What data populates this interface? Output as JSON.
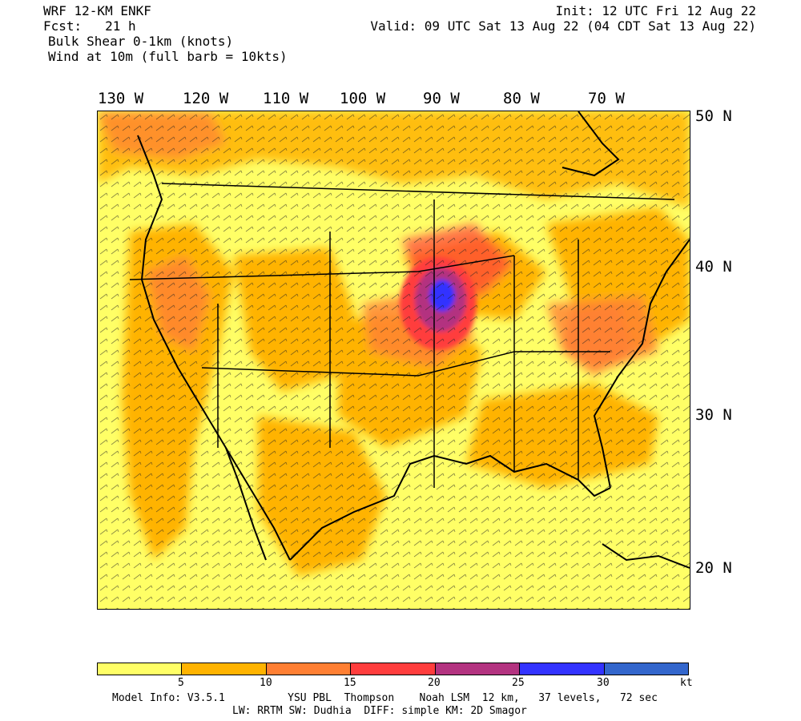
{
  "header": {
    "model": "WRF 12-KM ENKF",
    "forecast": "Fcst:   21 h",
    "field": "Bulk Shear 0-1km (knots)",
    "wind": "Wind at 10m (full barb = 10kts)",
    "init": "Init: 12 UTC Fri 12 Aug 22",
    "valid": "Valid: 09 UTC Sat 13 Aug 22 (04 CDT Sat 13 Aug 22)"
  },
  "map": {
    "lon_labels": [
      "130 W",
      "120 W",
      "110 W",
      "100 W",
      "90 W",
      "80 W",
      "70 W"
    ],
    "lat_labels": [
      "50 N",
      "40 N",
      "30 N",
      "20 N"
    ],
    "background": "#ffff66"
  },
  "colorbar": {
    "colors": [
      "#ffff66",
      "#ffb300",
      "#ff7f33",
      "#ff3d3d",
      "#b33380",
      "#3333ff",
      "#3366cc"
    ],
    "labels": [
      "5",
      "10",
      "15",
      "20",
      "25",
      "30",
      "kt"
    ]
  },
  "footer": {
    "line1": "Model Info: V3.5.1          YSU PBL  Thompson    Noah LSM  12 km,   37 levels,   72 sec",
    "line2": "LW: RRTM SW: Dudhia  DIFF: simple KM: 2D Smagor"
  }
}
